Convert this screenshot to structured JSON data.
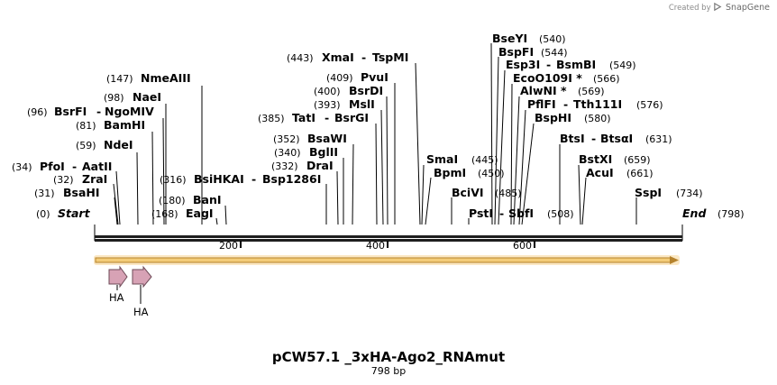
{
  "credit": {
    "prefix": "Created by",
    "brand": "SnapGene"
  },
  "title": "pCW57.1 _3xHA-Ago2_RNAmut",
  "length_label": "798 bp",
  "ruler": {
    "ticks": [
      "200",
      "400",
      "600"
    ]
  },
  "ends": {
    "start_pos": "(0)",
    "start": "Start",
    "end": "End",
    "end_pos": "(798)"
  },
  "colors": {
    "backbone": "#1e1e1e",
    "orf_fill": "#f3cc79",
    "orf_stroke": "#b5822c",
    "feature_fill": "#d7a2b5",
    "feature_stroke": "#6e4a57"
  },
  "features": [
    {
      "label": "HA"
    },
    {
      "label": "HA"
    }
  ],
  "enzymes": [
    {
      "pos": "(31)",
      "name": "BsaHI"
    },
    {
      "pos": "(32)",
      "name": "ZraI"
    },
    {
      "pos": "(34)",
      "name": "PfoI",
      "name2": "AatII"
    },
    {
      "pos": "(59)",
      "name": "NdeI"
    },
    {
      "pos": "(81)",
      "name": "BamHI"
    },
    {
      "pos": "(96)",
      "name": "BsrFI",
      "name2": "NgoMIV"
    },
    {
      "pos": "(98)",
      "name": "NaeI"
    },
    {
      "pos": "(147)",
      "name": "NmeAIII"
    },
    {
      "pos": "(168)",
      "name": "EagI"
    },
    {
      "pos": "(180)",
      "name": "BanI"
    },
    {
      "pos": "(316)",
      "name": "BsiHKAI",
      "name2": "Bsp1286I"
    },
    {
      "pos": "(332)",
      "name": "DraI"
    },
    {
      "pos": "(340)",
      "name": "BglII"
    },
    {
      "pos": "(352)",
      "name": "BsaWI"
    },
    {
      "pos": "(385)",
      "name": "TatI",
      "name2": "BsrGI"
    },
    {
      "pos": "(393)",
      "name": "MslI"
    },
    {
      "pos": "(400)",
      "name": "BsrDI"
    },
    {
      "pos": "(409)",
      "name": "PvuI"
    },
    {
      "pos": "(443)",
      "name": "XmaI",
      "name2": "TspMI"
    },
    {
      "pos": "(445)",
      "name": "SmaI"
    },
    {
      "pos": "(450)",
      "name": "BpmI"
    },
    {
      "pos": "(485)",
      "name": "BciVI"
    },
    {
      "pos": "(508)",
      "name": "PstI",
      "name2": "SbfI"
    },
    {
      "pos": "(540)",
      "name": "BseYI"
    },
    {
      "pos": "(544)",
      "name": "BspFI"
    },
    {
      "pos": "(549)",
      "name": "Esp3I",
      "name2": "BsmBI"
    },
    {
      "pos": "(566)",
      "name": "EcoO109I *"
    },
    {
      "pos": "(569)",
      "name": "AlwNI *"
    },
    {
      "pos": "(576)",
      "name": "PflFI",
      "name2": "Tth111I"
    },
    {
      "pos": "(580)",
      "name": "BspHI"
    },
    {
      "pos": "(631)",
      "name": "BtsI",
      "name2": "BtsαI"
    },
    {
      "pos": "(659)",
      "name": "BstXI"
    },
    {
      "pos": "(661)",
      "name": "AcuI"
    },
    {
      "pos": "(734)",
      "name": "SspI"
    }
  ]
}
